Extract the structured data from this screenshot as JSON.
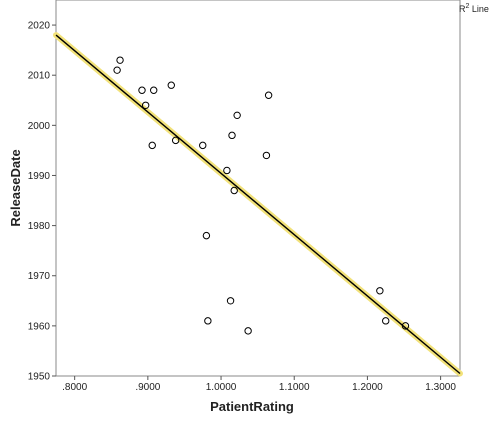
{
  "chart_data": {
    "type": "scatter",
    "title": "",
    "xlabel": "PatientRating",
    "ylabel": "ReleaseDate",
    "xlim": [
      0.7745,
      1.3265
    ],
    "ylim": [
      1950,
      2025
    ],
    "x_ticks": [
      0.8,
      0.9,
      1.0,
      1.1,
      1.2,
      1.3
    ],
    "x_tick_labels": [
      ".8000",
      ".9000",
      "1.0000",
      "1.1000",
      "1.2000",
      "1.3000"
    ],
    "y_ticks": [
      1950,
      1960,
      1970,
      1980,
      1990,
      2000,
      2010,
      2020
    ],
    "y_tick_labels": [
      "1950",
      "1960",
      "1970",
      "1980",
      "1990",
      "2000",
      "2010",
      "2020"
    ],
    "grid": false,
    "legend": {
      "position": "top-right",
      "label_base": "R",
      "label_sup": "2",
      "label_tail": " Line"
    },
    "series": [
      {
        "points": [
          {
            "x": 0.858,
            "y": 2011
          },
          {
            "x": 0.862,
            "y": 2013
          },
          {
            "x": 0.892,
            "y": 2007
          },
          {
            "x": 0.897,
            "y": 2004
          },
          {
            "x": 0.906,
            "y": 1996
          },
          {
            "x": 0.908,
            "y": 2007
          },
          {
            "x": 0.932,
            "y": 2008
          },
          {
            "x": 0.938,
            "y": 1997
          },
          {
            "x": 0.975,
            "y": 1996
          },
          {
            "x": 0.98,
            "y": 1978
          },
          {
            "x": 0.982,
            "y": 1961
          },
          {
            "x": 1.008,
            "y": 1991
          },
          {
            "x": 1.013,
            "y": 1965
          },
          {
            "x": 1.015,
            "y": 1998
          },
          {
            "x": 1.018,
            "y": 1987
          },
          {
            "x": 1.022,
            "y": 2002
          },
          {
            "x": 1.037,
            "y": 1959
          },
          {
            "x": 1.062,
            "y": 1994
          },
          {
            "x": 1.065,
            "y": 2006
          },
          {
            "x": 1.217,
            "y": 1967
          },
          {
            "x": 1.225,
            "y": 1961
          },
          {
            "x": 1.252,
            "y": 1960
          }
        ]
      }
    ],
    "fit_line": {
      "x": [
        0.7745,
        1.3265
      ],
      "y": [
        2018.0,
        1950.5
      ]
    },
    "colors": {
      "fit_line": "#000000",
      "fit_glow": "#f2e27a",
      "marker_stroke": "#000000",
      "axis": "#555555"
    }
  }
}
